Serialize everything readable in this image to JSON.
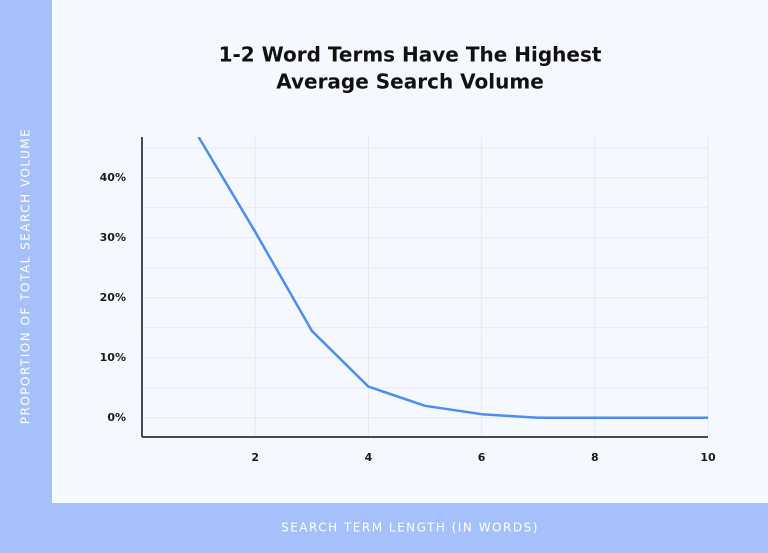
{
  "chart_data": {
    "type": "line",
    "title": [
      "1-2 Word Terms Have The Highest",
      "Average Search Volume"
    ],
    "y_label": "PROPORTION OF TOTAL SEARCH VOLUME",
    "x_label": "SEARCH TERM LENGTH (IN WORDS)",
    "x": [
      1,
      2,
      3,
      4,
      5,
      6,
      7,
      8,
      9,
      10
    ],
    "series": [
      {
        "color": "#4d8ded",
        "values": [
          46.8,
          31,
          14.5,
          5.2,
          2,
          0.6,
          0,
          0,
          0,
          0
        ]
      }
    ],
    "xlim": [
      0,
      10
    ],
    "xticks": [
      2,
      4,
      6,
      8,
      10
    ],
    "ylim": [
      -3.2,
      46.8
    ],
    "yticks": [
      {
        "value": 0,
        "label": "0%"
      },
      {
        "value": 10,
        "label": "10%"
      },
      {
        "value": 20,
        "label": "20%"
      },
      {
        "value": 30,
        "label": "30%"
      },
      {
        "value": 40,
        "label": "40%"
      }
    ],
    "y_minor_grid": [
      5,
      15,
      25,
      35,
      45
    ],
    "grid": true
  }
}
